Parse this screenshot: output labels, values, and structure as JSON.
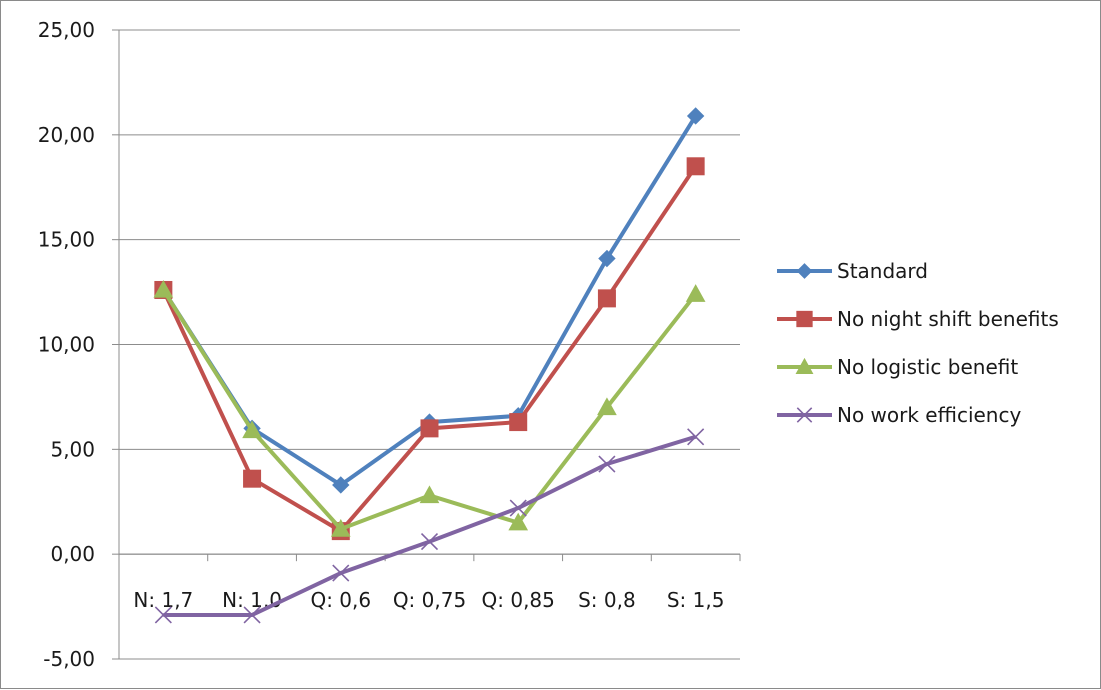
{
  "chart_data": {
    "type": "line",
    "title": "",
    "xlabel": "",
    "ylabel": "",
    "categories": [
      "N: 1,7",
      "N: 1,0",
      "Q: 0,6",
      "Q: 0,75",
      "Q: 0,85",
      "S: 0,8",
      "S: 1,5"
    ],
    "ylim": [
      -5,
      25
    ],
    "yticks": [
      -5,
      0,
      5,
      10,
      15,
      20,
      25
    ],
    "ytick_labels": [
      "-5,00",
      "0,00",
      "5,00",
      "10,00",
      "15,00",
      "20,00",
      "25,00"
    ],
    "grid": "horizontal",
    "legend_position": "right",
    "series": [
      {
        "name": "Standard",
        "color": "#4f81bd",
        "marker": "diamond",
        "values": [
          12.6,
          6.0,
          3.3,
          6.3,
          6.6,
          14.1,
          20.9
        ]
      },
      {
        "name": "No night shift benefits",
        "color": "#c0504d",
        "marker": "square",
        "values": [
          12.6,
          3.6,
          1.1,
          6.0,
          6.3,
          12.2,
          18.5
        ]
      },
      {
        "name": "No logistic benefit",
        "color": "#9bbb59",
        "marker": "triangle",
        "values": [
          12.6,
          5.9,
          1.2,
          2.8,
          1.5,
          7.0,
          12.4
        ]
      },
      {
        "name": "No work efficiency",
        "color": "#8064a2",
        "marker": "x",
        "values": [
          -2.9,
          -2.9,
          -0.9,
          0.6,
          2.2,
          4.3,
          5.6
        ]
      }
    ]
  }
}
